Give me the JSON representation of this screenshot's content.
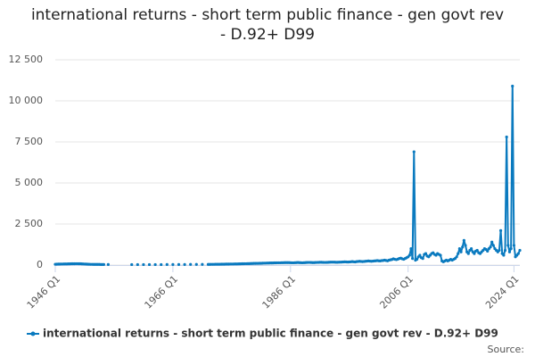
{
  "chart_data": {
    "type": "line",
    "title": "international returns - short term public finance - gen govt rev - D.92+ D99",
    "source_label": "Source:",
    "ylim": [
      0,
      12500
    ],
    "yticks": [
      0,
      {
        "value": 2500,
        "label": "2 500"
      },
      {
        "value": 5000,
        "label": "5 000"
      },
      {
        "value": 7500,
        "label": "7 500"
      },
      {
        "value": 10000,
        "label": "10 000"
      },
      {
        "value": 12500,
        "label": "12 500"
      }
    ],
    "grid": true,
    "categories": [
      "1946 Q1",
      null,
      null,
      null,
      null,
      null,
      null,
      null,
      null,
      null,
      null,
      null,
      null,
      null,
      null,
      null,
      null,
      null,
      null,
      null,
      null,
      null,
      null,
      null,
      null,
      null,
      null,
      null,
      null,
      null,
      null,
      null,
      null,
      null,
      null,
      null,
      null,
      null,
      null,
      null,
      null,
      null,
      null,
      null,
      null,
      null,
      null,
      null,
      null,
      null,
      null,
      null,
      null,
      null,
      null,
      null,
      null,
      null,
      null,
      null,
      null,
      null,
      null,
      null,
      null,
      null,
      null,
      null,
      null,
      null,
      null,
      null,
      null,
      null,
      null,
      null,
      null,
      null,
      null,
      null,
      "1966 Q1",
      null,
      null,
      null,
      null,
      null,
      null,
      null,
      null,
      null,
      null,
      null,
      null,
      null,
      null,
      null,
      null,
      null,
      null,
      null,
      null,
      null,
      null,
      null,
      null,
      null,
      null,
      null,
      null,
      null,
      null,
      null,
      null,
      null,
      null,
      null,
      null,
      null,
      null,
      null,
      null,
      null,
      null,
      null,
      null,
      null,
      null,
      null,
      null,
      null,
      null,
      null,
      null,
      null,
      null,
      null,
      null,
      null,
      null,
      null,
      null,
      null,
      null,
      null,
      null,
      null,
      null,
      null,
      null,
      null,
      null,
      null,
      null,
      null,
      null,
      null,
      null,
      null,
      null,
      null,
      "1986 Q1",
      null,
      null,
      null,
      null,
      null,
      null,
      null,
      null,
      null,
      null,
      null,
      null,
      null,
      null,
      null,
      null,
      null,
      null,
      null,
      null,
      null,
      null,
      null,
      null,
      null,
      null,
      null,
      null,
      null,
      null,
      null,
      null,
      null,
      null,
      null,
      null,
      null,
      null,
      null,
      null,
      null,
      null,
      null,
      null,
      null,
      null,
      null,
      null,
      null,
      null,
      null,
      null,
      null,
      null,
      null,
      null,
      null,
      null,
      null,
      null,
      null,
      null,
      null,
      null,
      null,
      null,
      null,
      null,
      null,
      null,
      null,
      null,
      null,
      null,
      null,
      null,
      null,
      null,
      null,
      "2006 Q1",
      null,
      null,
      null,
      null,
      null,
      null,
      null,
      null,
      null,
      null,
      null,
      null,
      null,
      null,
      null,
      null,
      null,
      null,
      null,
      null,
      null,
      null,
      null,
      null,
      null,
      null,
      null,
      null,
      null,
      null,
      null,
      null,
      null,
      null,
      null,
      null,
      null,
      null,
      null,
      null,
      null,
      null,
      null,
      null,
      null,
      null,
      null,
      null,
      null,
      null,
      null,
      null,
      null,
      null,
      null,
      null,
      null,
      null,
      null,
      null,
      null,
      null,
      null,
      null,
      null,
      null,
      null,
      null,
      null,
      null,
      null,
      "2024 Q1",
      null,
      null,
      null,
      null
    ],
    "series": [
      {
        "name": "international returns - short term public finance - gen govt rev - D.92+ D99",
        "color": "#0a7abf",
        "values": [
          50,
          55,
          60,
          60,
          65,
          65,
          70,
          70,
          70,
          75,
          75,
          80,
          80,
          80,
          85,
          85,
          80,
          80,
          75,
          70,
          65,
          60,
          55,
          50,
          45,
          45,
          40,
          40,
          40,
          40,
          40,
          35,
          35,
          35,
          null,
          null,
          35,
          null,
          null,
          null,
          null,
          null,
          null,
          null,
          null,
          null,
          null,
          null,
          null,
          null,
          null,
          null,
          30,
          null,
          null,
          null,
          30,
          null,
          null,
          null,
          30,
          null,
          null,
          null,
          30,
          null,
          null,
          null,
          30,
          null,
          null,
          null,
          30,
          null,
          null,
          null,
          35,
          null,
          null,
          null,
          35,
          null,
          null,
          null,
          35,
          null,
          null,
          null,
          35,
          null,
          null,
          null,
          40,
          null,
          null,
          null,
          40,
          null,
          null,
          null,
          40,
          null,
          null,
          null,
          40,
          40,
          45,
          45,
          45,
          50,
          50,
          50,
          50,
          55,
          55,
          55,
          60,
          60,
          60,
          65,
          65,
          65,
          70,
          70,
          70,
          75,
          75,
          80,
          80,
          85,
          85,
          90,
          90,
          95,
          95,
          100,
          100,
          105,
          105,
          110,
          110,
          115,
          120,
          120,
          125,
          125,
          130,
          130,
          130,
          135,
          135,
          140,
          140,
          140,
          145,
          145,
          150,
          150,
          150,
          150,
          145,
          140,
          140,
          145,
          150,
          155,
          150,
          145,
          140,
          145,
          150,
          155,
          160,
          160,
          155,
          150,
          150,
          155,
          160,
          165,
          170,
          170,
          165,
          160,
          160,
          165,
          170,
          175,
          180,
          180,
          175,
          170,
          170,
          175,
          180,
          185,
          190,
          195,
          190,
          185,
          190,
          200,
          210,
          200,
          190,
          210,
          220,
          230,
          220,
          210,
          220,
          230,
          240,
          250,
          240,
          230,
          240,
          250,
          260,
          270,
          260,
          250,
          270,
          280,
          300,
          280,
          260,
          300,
          320,
          340,
          380,
          350,
          330,
          360,
          400,
          420,
          380,
          350,
          400,
          450,
          500,
          600,
          1000,
          400,
          6900,
          300,
          350,
          500,
          600,
          450,
          400,
          650,
          700,
          550,
          500,
          600,
          700,
          750,
          650,
          600,
          700,
          650,
          600,
          250,
          200,
          250,
          300,
          250,
          300,
          350,
          300,
          350,
          400,
          500,
          700,
          1000,
          800,
          1100,
          1500,
          1200,
          800,
          700,
          900,
          1000,
          800,
          700,
          850,
          900,
          750,
          700,
          800,
          900,
          1000,
          950,
          850,
          1000,
          1100,
          1400,
          1200,
          1000,
          900,
          800,
          900,
          2100,
          700,
          600,
          900,
          7800,
          1200,
          800,
          1000,
          10900,
          1200,
          500,
          600,
          700,
          900
        ]
      }
    ]
  }
}
